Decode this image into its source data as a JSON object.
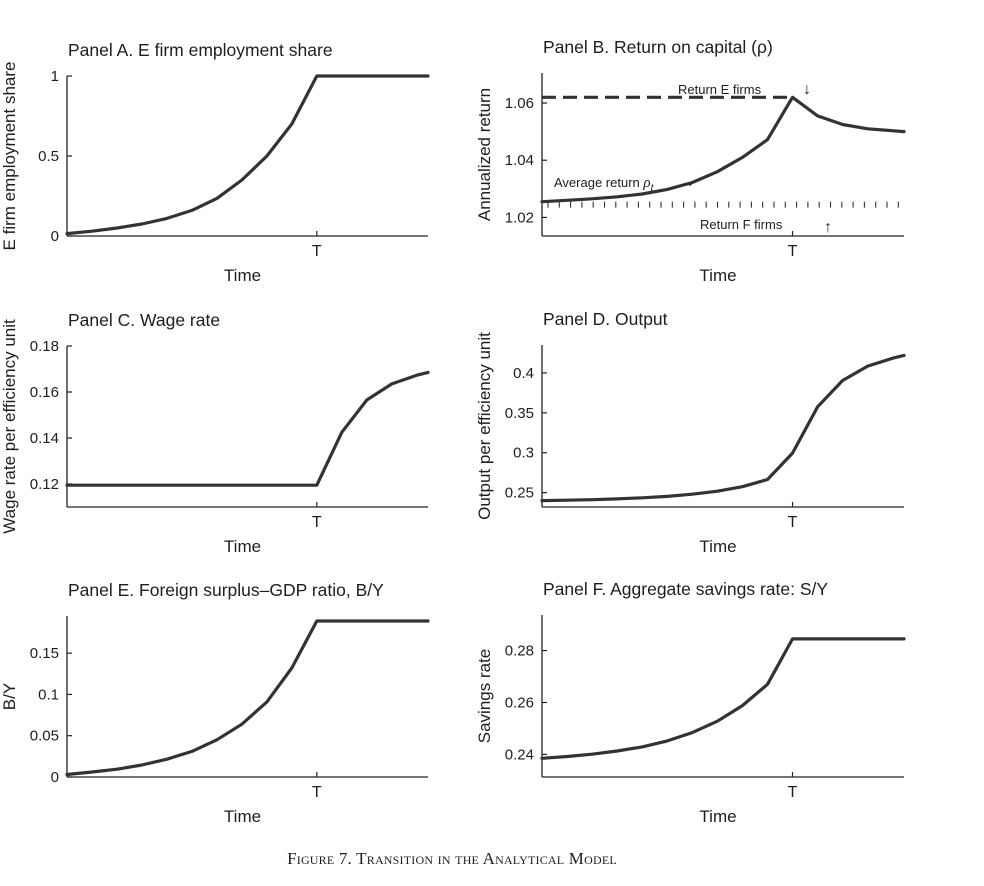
{
  "figure": {
    "caption": "Figure 7. Transition in the Analytical Model",
    "line_color": "#333333"
  },
  "chart_data": [
    {
      "type": "line",
      "title": "Panel A. E firm employment share",
      "xlabel": "Time",
      "ylabel": "E firm employment share",
      "x_tick_labels": [
        "T"
      ],
      "xlim": [
        0,
        14.45
      ],
      "ylim": [
        0,
        1
      ],
      "y_ticks": [
        0,
        0.5,
        1
      ],
      "y_tick_labels": [
        "0",
        "0.5",
        "1"
      ],
      "series": [
        {
          "name": "E firm employment share",
          "x": [
            0,
            1,
            2,
            3,
            4,
            5,
            6,
            7,
            8,
            9,
            10,
            11,
            14.45
          ],
          "y": [
            0.015,
            0.03,
            0.05,
            0.075,
            0.11,
            0.16,
            0.235,
            0.35,
            0.5,
            0.7,
            1,
            1,
            1
          ]
        }
      ]
    },
    {
      "type": "line",
      "title": "Panel B. Return on capital (ρ)",
      "xlabel": "Time",
      "ylabel": "Annualized return",
      "x_tick_labels": [
        "T"
      ],
      "xlim": [
        0,
        14.45
      ],
      "ylim": [
        1.0135,
        1.0705
      ],
      "y_ticks": [
        1.02,
        1.04,
        1.06
      ],
      "y_tick_labels": [
        "1.02",
        "1.04",
        "1.06"
      ],
      "series": [
        {
          "name": "Average return ρ_t",
          "x": [
            0,
            1,
            2,
            3,
            4,
            5,
            6,
            7,
            8,
            9,
            10,
            11,
            12,
            13,
            14.45
          ],
          "y": [
            1.0255,
            1.026,
            1.0265,
            1.0272,
            1.0282,
            1.0298,
            1.0322,
            1.036,
            1.041,
            1.0472,
            1.062,
            1.0555,
            1.0525,
            1.051,
            1.05
          ]
        },
        {
          "name": "Return E firms",
          "style": "dashed",
          "x": [
            0,
            10
          ],
          "y": [
            1.062,
            1.062
          ]
        },
        {
          "name": "Return F firms",
          "style": "ticks",
          "x": [
            0,
            14.45
          ],
          "y": [
            1.0255,
            1.0255
          ]
        }
      ],
      "annotations": [
        {
          "text": "Return E firms",
          "arrow": "↓"
        },
        {
          "text": "Average return",
          "symbol": "ρ",
          "subscript": "t",
          "arrow": "→"
        },
        {
          "text": "Return F firms",
          "arrow": "↑"
        }
      ]
    },
    {
      "type": "line",
      "title": "Panel C. Wage rate",
      "xlabel": "Time",
      "ylabel": "Wage rate per efficiency unit",
      "x_tick_labels": [
        "T"
      ],
      "xlim": [
        0,
        14.45
      ],
      "ylim": [
        0.11,
        0.18
      ],
      "y_ticks": [
        0.12,
        0.14,
        0.16,
        0.18
      ],
      "y_tick_labels": [
        "0.12",
        "0.14",
        "0.16",
        "0.18"
      ],
      "series": [
        {
          "name": "Wage rate",
          "x": [
            0,
            10,
            11,
            12,
            13,
            14,
            14.45
          ],
          "y": [
            0.1195,
            0.1195,
            0.1425,
            0.1565,
            0.1635,
            0.1673,
            0.1685
          ]
        }
      ]
    },
    {
      "type": "line",
      "title": "Panel D. Output",
      "xlabel": "Time",
      "ylabel": "Output per efficiency unit",
      "x_tick_labels": [
        "T"
      ],
      "xlim": [
        0,
        14.45
      ],
      "ylim": [
        0.232,
        0.435
      ],
      "y_ticks": [
        0.25,
        0.3,
        0.35,
        0.4
      ],
      "y_tick_labels": [
        "0.25",
        "0.3",
        "0.35",
        "0.4"
      ],
      "series": [
        {
          "name": "Output",
          "x": [
            0,
            1,
            2,
            3,
            4,
            5,
            6,
            7,
            8,
            9,
            10,
            11,
            12,
            13,
            14,
            14.45
          ],
          "y": [
            0.24,
            0.2405,
            0.2412,
            0.2422,
            0.2435,
            0.2453,
            0.248,
            0.2518,
            0.2575,
            0.2665,
            0.2995,
            0.3575,
            0.3905,
            0.4085,
            0.4185,
            0.422
          ]
        }
      ]
    },
    {
      "type": "line",
      "title": "Panel E. Foreign surplus–GDP ratio, B/Y",
      "xlabel": "Time",
      "ylabel": "B/Y",
      "x_tick_labels": [
        "T"
      ],
      "xlim": [
        0,
        14.45
      ],
      "ylim": [
        0,
        0.195
      ],
      "y_ticks": [
        0,
        0.05,
        0.1,
        0.15
      ],
      "y_tick_labels": [
        "0",
        "0.05",
        "0.1",
        "0.15"
      ],
      "series": [
        {
          "name": "B/Y",
          "x": [
            0,
            1,
            2,
            3,
            4,
            5,
            6,
            7,
            8,
            9,
            10,
            11,
            14.45
          ],
          "y": [
            0.003,
            0.006,
            0.0095,
            0.0145,
            0.0215,
            0.031,
            0.045,
            0.064,
            0.091,
            0.132,
            0.189,
            0.189,
            0.189
          ]
        }
      ]
    },
    {
      "type": "line",
      "title": "Panel F. Aggregate savings rate: S/Y",
      "xlabel": "Time",
      "ylabel": "Savings rate",
      "x_tick_labels": [
        "T"
      ],
      "xlim": [
        0,
        14.45
      ],
      "ylim": [
        0.2313,
        0.2937
      ],
      "y_ticks": [
        0.24,
        0.26,
        0.28
      ],
      "y_tick_labels": [
        "0.24",
        "0.26",
        "0.28"
      ],
      "series": [
        {
          "name": "Savings rate",
          "x": [
            0,
            1,
            2,
            3,
            4,
            5,
            6,
            7,
            8,
            9,
            10,
            11,
            14.45
          ],
          "y": [
            0.2385,
            0.2392,
            0.2401,
            0.2413,
            0.2429,
            0.2452,
            0.2484,
            0.2528,
            0.2588,
            0.267,
            0.2845,
            0.2845,
            0.2845
          ]
        }
      ]
    }
  ]
}
